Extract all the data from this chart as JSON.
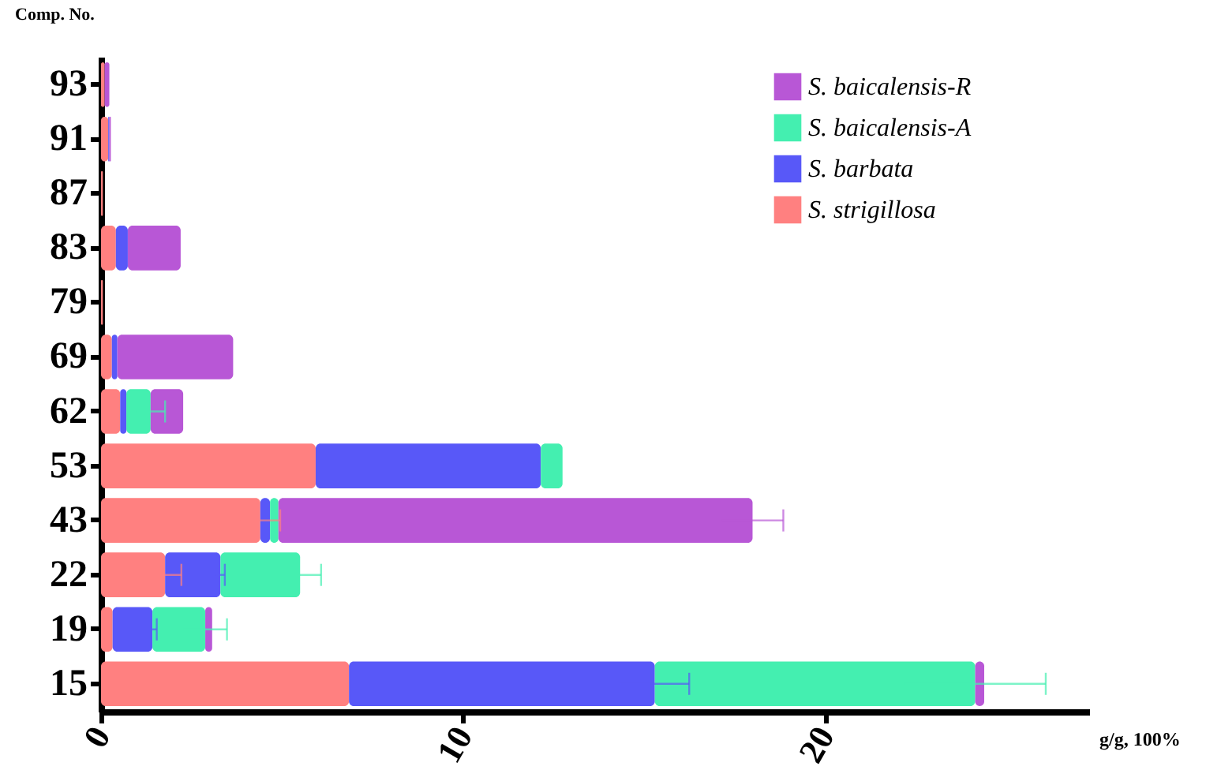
{
  "chart_data": {
    "type": "bar",
    "orientation": "horizontal",
    "stacked": true,
    "xlabel": "g/g, 100%",
    "ylabel": "Comp. No.",
    "categories": [
      "93",
      "91",
      "87",
      "83",
      "79",
      "69",
      "62",
      "53",
      "43",
      "22",
      "19",
      "15"
    ],
    "series": [
      {
        "name": "S. strigillosa",
        "color": "#ff8080",
        "values": [
          0.1,
          0.2,
          0.05,
          0.41,
          0.05,
          0.3,
          0.53,
          5.93,
          4.4,
          1.77,
          0.32,
          6.85
        ],
        "errors": [
          null,
          null,
          null,
          null,
          null,
          null,
          null,
          null,
          0.55,
          0.45,
          null,
          null
        ]
      },
      {
        "name": "S. barbata",
        "color": "#5858f8",
        "values": [
          0,
          0.03,
          0,
          0.33,
          0,
          0.15,
          0.17,
          6.22,
          0.27,
          1.53,
          1.1,
          8.45
        ],
        "errors": [
          null,
          null,
          null,
          null,
          null,
          null,
          null,
          null,
          null,
          0.12,
          0.12,
          0.95
        ]
      },
      {
        "name": "S. baicalensis-A",
        "color": "#44efb0",
        "values": [
          0,
          0,
          0,
          0,
          0,
          0,
          0.67,
          0.6,
          0.23,
          2.2,
          1.46,
          8.85
        ],
        "errors": [
          null,
          null,
          null,
          null,
          null,
          null,
          0.4,
          null,
          null,
          0.58,
          0.6,
          1.95
        ]
      },
      {
        "name": "S. baicalensis-R",
        "color": "#b857d6",
        "values": [
          0.13,
          0.04,
          0,
          1.46,
          0,
          3.2,
          0.9,
          0,
          13.1,
          0,
          0.19,
          0.25
        ],
        "errors": [
          null,
          null,
          null,
          null,
          null,
          null,
          null,
          null,
          0.85,
          null,
          null,
          null
        ]
      }
    ],
    "xlim": [
      0,
      27.3
    ],
    "xticks": [
      0,
      10,
      20
    ],
    "grid": false,
    "legend": "top right"
  }
}
